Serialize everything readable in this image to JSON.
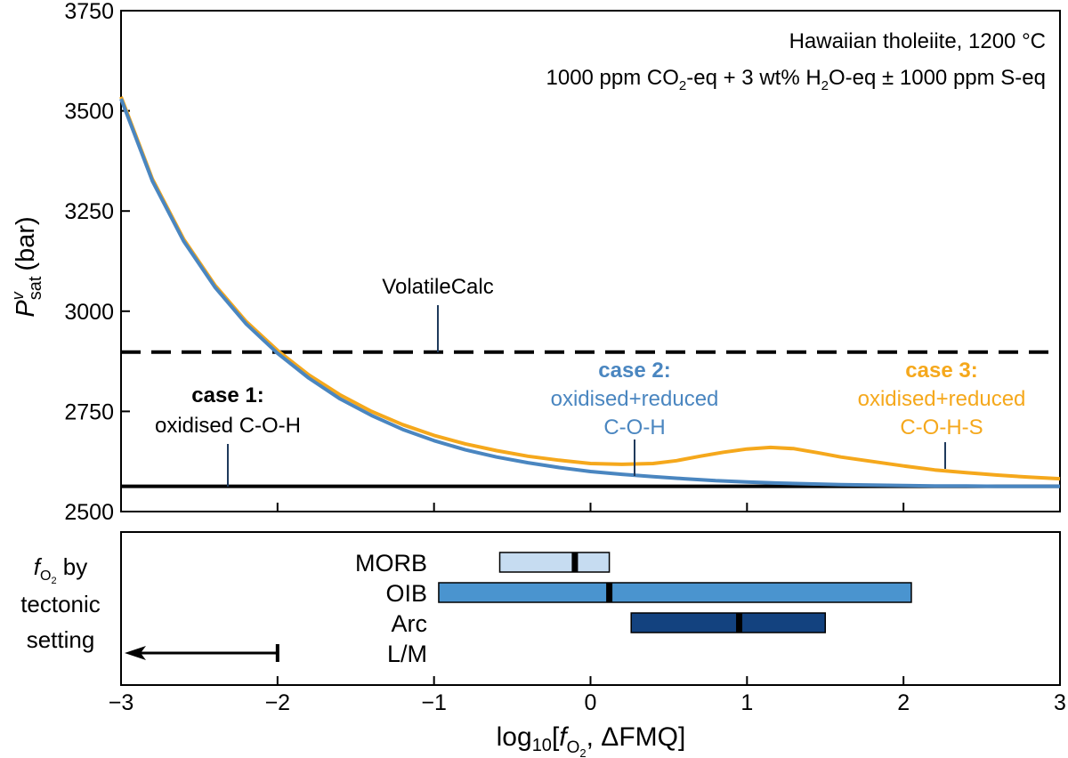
{
  "annotation": {
    "line1": "Hawaiian tholeiite, 1200 °C",
    "line2_a": "1000 ppm CO",
    "line2_sub1": "2",
    "line2_b": "-eq + 3 wt% H",
    "line2_sub2": "2",
    "line2_c": "O-eq ± 1000 ppm S-eq"
  },
  "ylabel": {
    "main": "P",
    "sup": "v",
    "sub": "sat",
    "unit": "(bar)"
  },
  "xlabel": {
    "prefix": "log",
    "base": "10",
    "open": "[",
    "f": "f",
    "sub": "O",
    "subsub": "2",
    "rest": ", ΔFMQ]"
  },
  "panel_label": {
    "line1_f": "f",
    "line1_sub": "O",
    "line1_subsub": "2",
    "line1_rest": " by",
    "line2": "tectonic",
    "line3": "setting"
  },
  "labels": {
    "volatilecalc": "VolatileCalc",
    "case1_title": "case 1:",
    "case1_desc": "oxidised C-O-H",
    "case2_title": "case 2:",
    "case2_desc1": "oxidised+reduced",
    "case2_desc2": "C-O-H",
    "case3_title": "case 3:",
    "case3_desc1": "oxidised+reduced",
    "case3_desc2": "C-O-H-S"
  },
  "colors": {
    "case1": "#000000",
    "case2": "#4a86c0",
    "case3": "#f5a81c",
    "morb": "#c6dcf1",
    "oib": "#4a94cf",
    "arc": "#13427f"
  },
  "chart_data": [
    {
      "type": "line",
      "xlim": [
        -3,
        3
      ],
      "ylim": [
        2500,
        3750
      ],
      "xticks": [
        -3,
        -2,
        -1,
        0,
        1,
        2,
        3
      ],
      "xtick_labels": [
        "−3",
        "−2",
        "−1",
        "0",
        "1",
        "2",
        "3"
      ],
      "yticks": [
        2500,
        2750,
        3000,
        3250,
        3500,
        3750
      ],
      "ytick_labels": [
        "2500",
        "2750",
        "3000",
        "3250",
        "3500",
        "3750"
      ],
      "grid": false,
      "series": [
        {
          "key": "case1",
          "style": "solid",
          "x": [
            -3,
            3
          ],
          "y": [
            2563,
            2563
          ]
        },
        {
          "key": "volatilecalc",
          "style": "dashed",
          "x": [
            -3,
            3
          ],
          "y": [
            2898,
            2898
          ]
        },
        {
          "key": "case2",
          "style": "solid",
          "x": [
            -3.0,
            -2.8,
            -2.6,
            -2.4,
            -2.2,
            -2.0,
            -1.8,
            -1.6,
            -1.4,
            -1.2,
            -1.0,
            -0.8,
            -0.6,
            -0.4,
            -0.2,
            0.0,
            0.2,
            0.4,
            0.6,
            0.8,
            1.0,
            1.2,
            1.4,
            1.6,
            1.8,
            2.0,
            2.2,
            2.4,
            2.6,
            2.8,
            3.0
          ],
          "y": [
            3530,
            3325,
            3175,
            3060,
            2968,
            2895,
            2833,
            2781,
            2740,
            2705,
            2677,
            2654,
            2636,
            2622,
            2610,
            2600,
            2593,
            2587,
            2582,
            2577,
            2574,
            2571,
            2569,
            2567,
            2566,
            2565,
            2564,
            2564,
            2563,
            2563,
            2563
          ]
        },
        {
          "key": "case3",
          "style": "solid",
          "x": [
            -3.0,
            -2.8,
            -2.6,
            -2.4,
            -2.2,
            -2.0,
            -1.8,
            -1.6,
            -1.4,
            -1.2,
            -1.0,
            -0.8,
            -0.6,
            -0.4,
            -0.2,
            0.0,
            0.2,
            0.4,
            0.55,
            0.7,
            0.85,
            1.0,
            1.15,
            1.3,
            1.45,
            1.6,
            1.8,
            2.0,
            2.2,
            2.4,
            2.6,
            2.8,
            3.0
          ],
          "y": [
            3535,
            3330,
            3180,
            3065,
            2974,
            2902,
            2841,
            2791,
            2750,
            2717,
            2690,
            2669,
            2652,
            2638,
            2628,
            2620,
            2618,
            2620,
            2627,
            2638,
            2648,
            2656,
            2660,
            2657,
            2647,
            2636,
            2625,
            2614,
            2604,
            2597,
            2591,
            2586,
            2582
          ]
        }
      ]
    },
    {
      "type": "bar",
      "orientation": "horizontal",
      "xlim": [
        -3,
        3
      ],
      "categories": [
        "MORB",
        "OIB",
        "Arc",
        "L/M"
      ],
      "ranges": [
        {
          "category": "MORB",
          "min": -0.58,
          "max": 0.12,
          "median": -0.1
        },
        {
          "category": "OIB",
          "min": -0.97,
          "max": 2.05,
          "median": 0.12
        },
        {
          "category": "Arc",
          "min": 0.26,
          "max": 1.5,
          "median": 0.95
        },
        {
          "category": "L/M",
          "max": -2.0,
          "extends": "below -3 (arrow)"
        }
      ]
    }
  ]
}
